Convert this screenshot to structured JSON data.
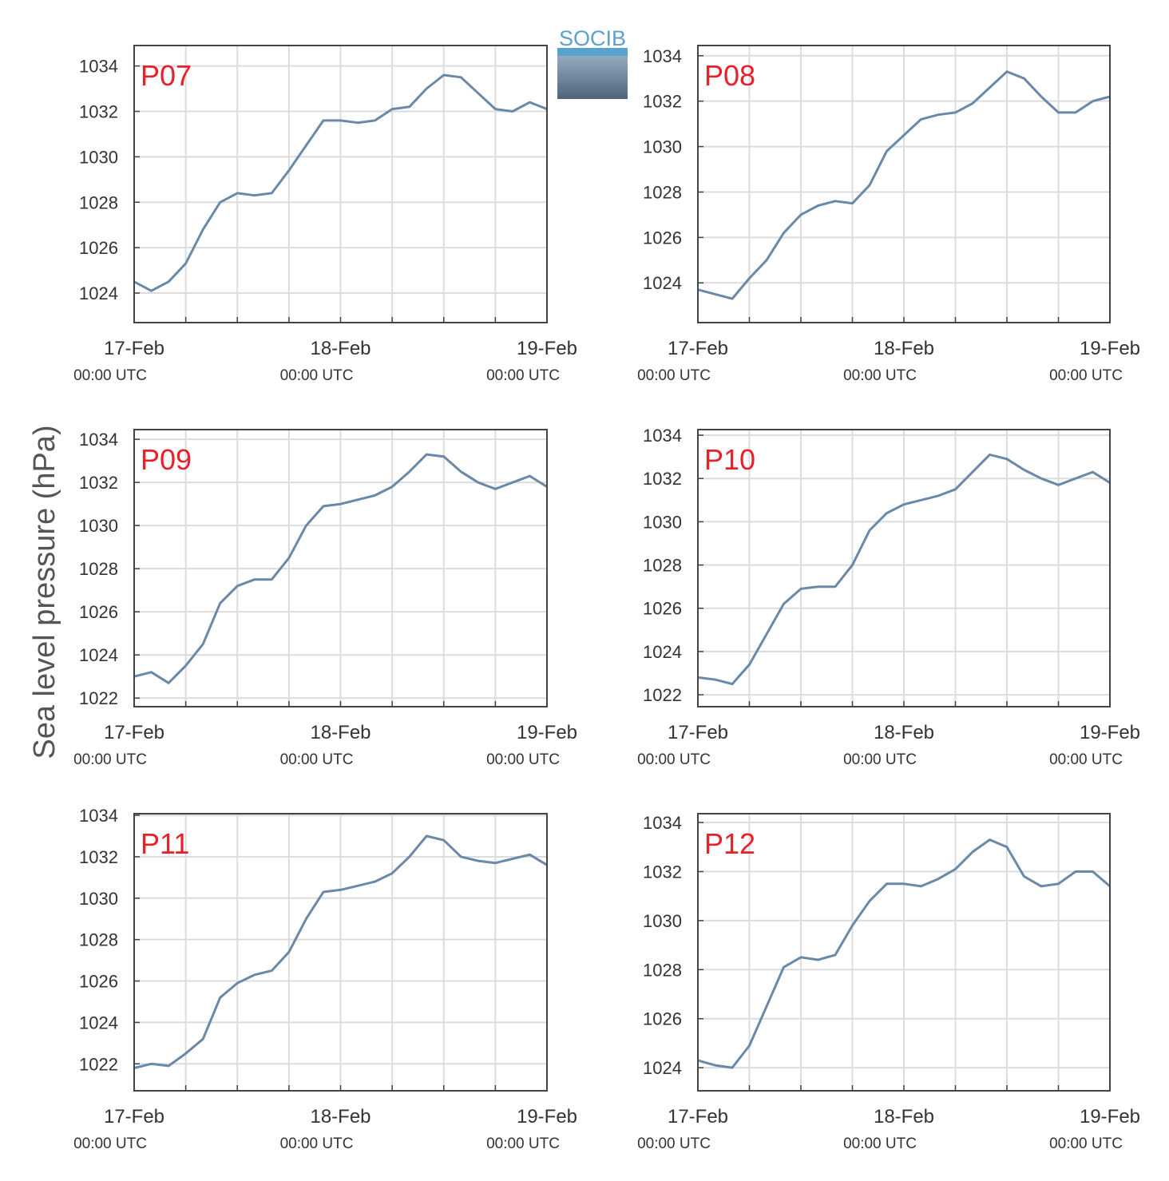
{
  "logo": "SOCIB",
  "chart_data": [
    {
      "type": "line",
      "title": "P07",
      "color": "#6a89a8",
      "grid": true,
      "x": [
        "17-Feb 00:00",
        "17-Feb 02:00",
        "17-Feb 04:00",
        "17-Feb 06:00",
        "17-Feb 08:00",
        "17-Feb 10:00",
        "17-Feb 12:00",
        "17-Feb 14:00",
        "17-Feb 16:00",
        "17-Feb 18:00",
        "17-Feb 20:00",
        "17-Feb 22:00",
        "18-Feb 00:00",
        "18-Feb 02:00",
        "18-Feb 04:00",
        "18-Feb 06:00",
        "18-Feb 08:00",
        "18-Feb 10:00",
        "18-Feb 12:00",
        "18-Feb 14:00",
        "18-Feb 16:00",
        "18-Feb 18:00",
        "18-Feb 20:00",
        "18-Feb 22:00",
        "19-Feb 00:00"
      ],
      "values": [
        1024.5,
        1024.1,
        1024.5,
        1025.3,
        1026.8,
        1028.0,
        1028.4,
        1028.3,
        1028.4,
        1029.4,
        1030.5,
        1031.6,
        1031.6,
        1031.5,
        1031.6,
        1032.1,
        1032.2,
        1033.0,
        1033.6,
        1033.5,
        1032.8,
        1032.1,
        1032.0,
        1032.4,
        1032.1
      ],
      "xlim": [
        "17-Feb 00:00",
        "19-Feb 00:00"
      ],
      "xticks": [
        {
          "value": "17-Feb 00:00",
          "label": "17-Feb",
          "sublabel": "00:00 UTC"
        },
        "17-Feb 06:00",
        "17-Feb 12:00",
        "17-Feb 18:00",
        {
          "value": "18-Feb 00:00",
          "label": "18-Feb",
          "sublabel": "00:00 UTC"
        },
        "18-Feb 06:00",
        "18-Feb 12:00",
        "18-Feb 18:00",
        {
          "value": "19-Feb 00:00",
          "label": "19-Feb",
          "sublabel": "00:00 UTC"
        }
      ],
      "ylim": [
        1022.7,
        1034.9
      ],
      "yticks": [
        1024,
        1026,
        1028,
        1030,
        1032,
        1034
      ]
    },
    {
      "type": "line",
      "title": "P08",
      "color": "#6a89a8",
      "grid": true,
      "x": [
        "17-Feb 00:00",
        "17-Feb 02:00",
        "17-Feb 04:00",
        "17-Feb 06:00",
        "17-Feb 08:00",
        "17-Feb 10:00",
        "17-Feb 12:00",
        "17-Feb 14:00",
        "17-Feb 16:00",
        "17-Feb 18:00",
        "17-Feb 20:00",
        "17-Feb 22:00",
        "18-Feb 00:00",
        "18-Feb 02:00",
        "18-Feb 04:00",
        "18-Feb 06:00",
        "18-Feb 08:00",
        "18-Feb 10:00",
        "18-Feb 12:00",
        "18-Feb 14:00",
        "18-Feb 16:00",
        "18-Feb 18:00",
        "18-Feb 20:00",
        "18-Feb 22:00",
        "19-Feb 00:00"
      ],
      "values": [
        1023.7,
        1023.5,
        1023.3,
        1024.2,
        1025.0,
        1026.2,
        1027.0,
        1027.4,
        1027.6,
        1027.5,
        1028.3,
        1029.8,
        1030.5,
        1031.2,
        1031.4,
        1031.5,
        1031.9,
        1032.6,
        1033.3,
        1033.0,
        1032.2,
        1031.5,
        1031.5,
        1032.0,
        1032.2
      ],
      "xlim": [
        "17-Feb 00:00",
        "19-Feb 00:00"
      ],
      "xticks": [
        {
          "value": "17-Feb 00:00",
          "label": "17-Feb",
          "sublabel": "00:00 UTC"
        },
        "17-Feb 06:00",
        "17-Feb 12:00",
        "17-Feb 18:00",
        {
          "value": "18-Feb 00:00",
          "label": "18-Feb",
          "sublabel": "00:00 UTC"
        },
        "18-Feb 06:00",
        "18-Feb 12:00",
        "18-Feb 18:00",
        {
          "value": "19-Feb 00:00",
          "label": "19-Feb",
          "sublabel": "00:00 UTC"
        }
      ],
      "ylim": [
        1022.25,
        1034.45
      ],
      "yticks": [
        1024,
        1026,
        1028,
        1030,
        1032,
        1034
      ]
    },
    {
      "type": "line",
      "title": "P09",
      "color": "#6a89a8",
      "grid": true,
      "ylabel": "Sea level pressure (hPa)",
      "x": [
        "17-Feb 00:00",
        "17-Feb 02:00",
        "17-Feb 04:00",
        "17-Feb 06:00",
        "17-Feb 08:00",
        "17-Feb 10:00",
        "17-Feb 12:00",
        "17-Feb 14:00",
        "17-Feb 16:00",
        "17-Feb 18:00",
        "17-Feb 20:00",
        "17-Feb 22:00",
        "18-Feb 00:00",
        "18-Feb 02:00",
        "18-Feb 04:00",
        "18-Feb 06:00",
        "18-Feb 08:00",
        "18-Feb 10:00",
        "18-Feb 12:00",
        "18-Feb 14:00",
        "18-Feb 16:00",
        "18-Feb 18:00",
        "18-Feb 20:00",
        "18-Feb 22:00",
        "19-Feb 00:00"
      ],
      "values": [
        1023.0,
        1023.2,
        1022.7,
        1023.5,
        1024.5,
        1026.4,
        1027.2,
        1027.5,
        1027.5,
        1028.5,
        1030.0,
        1030.9,
        1031.0,
        1031.2,
        1031.4,
        1031.8,
        1032.5,
        1033.3,
        1033.2,
        1032.5,
        1032.0,
        1031.7,
        1032.0,
        1032.3,
        1031.8
      ],
      "xlim": [
        "17-Feb 00:00",
        "19-Feb 00:00"
      ],
      "xticks": [
        {
          "value": "17-Feb 00:00",
          "label": "17-Feb",
          "sublabel": "00:00 UTC"
        },
        "17-Feb 06:00",
        "17-Feb 12:00",
        "17-Feb 18:00",
        {
          "value": "18-Feb 00:00",
          "label": "18-Feb",
          "sublabel": "00:00 UTC"
        },
        "18-Feb 06:00",
        "18-Feb 12:00",
        "18-Feb 18:00",
        {
          "value": "19-Feb 00:00",
          "label": "19-Feb",
          "sublabel": "00:00 UTC"
        }
      ],
      "ylim": [
        1021.6,
        1034.45
      ],
      "yticks": [
        1022,
        1024,
        1026,
        1028,
        1030,
        1032,
        1034
      ]
    },
    {
      "type": "line",
      "title": "P10",
      "color": "#6a89a8",
      "grid": true,
      "x": [
        "17-Feb 00:00",
        "17-Feb 02:00",
        "17-Feb 04:00",
        "17-Feb 06:00",
        "17-Feb 08:00",
        "17-Feb 10:00",
        "17-Feb 12:00",
        "17-Feb 14:00",
        "17-Feb 16:00",
        "17-Feb 18:00",
        "17-Feb 20:00",
        "17-Feb 22:00",
        "18-Feb 00:00",
        "18-Feb 02:00",
        "18-Feb 04:00",
        "18-Feb 06:00",
        "18-Feb 08:00",
        "18-Feb 10:00",
        "18-Feb 12:00",
        "18-Feb 14:00",
        "18-Feb 16:00",
        "18-Feb 18:00",
        "18-Feb 20:00",
        "18-Feb 22:00",
        "19-Feb 00:00"
      ],
      "values": [
        1022.8,
        1022.7,
        1022.5,
        1023.4,
        1024.8,
        1026.2,
        1026.9,
        1027.0,
        1027.0,
        1028.0,
        1029.6,
        1030.4,
        1030.8,
        1031.0,
        1031.2,
        1031.5,
        1032.3,
        1033.1,
        1032.9,
        1032.4,
        1032.0,
        1031.7,
        1032.0,
        1032.3,
        1031.8
      ],
      "xlim": [
        "17-Feb 00:00",
        "19-Feb 00:00"
      ],
      "xticks": [
        {
          "value": "17-Feb 00:00",
          "label": "17-Feb",
          "sublabel": "00:00 UTC"
        },
        "17-Feb 06:00",
        "17-Feb 12:00",
        "17-Feb 18:00",
        {
          "value": "18-Feb 00:00",
          "label": "18-Feb",
          "sublabel": "00:00 UTC"
        },
        "18-Feb 06:00",
        "18-Feb 12:00",
        "18-Feb 18:00",
        {
          "value": "19-Feb 00:00",
          "label": "19-Feb",
          "sublabel": "00:00 UTC"
        }
      ],
      "ylim": [
        1021.45,
        1034.26
      ],
      "yticks": [
        1022,
        1024,
        1026,
        1028,
        1030,
        1032,
        1034
      ]
    },
    {
      "type": "line",
      "title": "P11",
      "color": "#6a89a8",
      "grid": true,
      "x": [
        "17-Feb 00:00",
        "17-Feb 02:00",
        "17-Feb 04:00",
        "17-Feb 06:00",
        "17-Feb 08:00",
        "17-Feb 10:00",
        "17-Feb 12:00",
        "17-Feb 14:00",
        "17-Feb 16:00",
        "17-Feb 18:00",
        "17-Feb 20:00",
        "17-Feb 22:00",
        "18-Feb 00:00",
        "18-Feb 02:00",
        "18-Feb 04:00",
        "18-Feb 06:00",
        "18-Feb 08:00",
        "18-Feb 10:00",
        "18-Feb 12:00",
        "18-Feb 14:00",
        "18-Feb 16:00",
        "18-Feb 18:00",
        "18-Feb 20:00",
        "18-Feb 22:00",
        "19-Feb 00:00"
      ],
      "values": [
        1021.8,
        1022.0,
        1021.9,
        1022.5,
        1023.2,
        1025.2,
        1025.9,
        1026.3,
        1026.5,
        1027.4,
        1029.0,
        1030.3,
        1030.4,
        1030.6,
        1030.8,
        1031.2,
        1032.0,
        1033.0,
        1032.8,
        1032.0,
        1031.8,
        1031.7,
        1031.9,
        1032.1,
        1031.6
      ],
      "xlim": [
        "17-Feb 00:00",
        "19-Feb 00:00"
      ],
      "xticks": [
        {
          "value": "17-Feb 00:00",
          "label": "17-Feb",
          "sublabel": "00:00 UTC"
        },
        "17-Feb 06:00",
        "17-Feb 12:00",
        "17-Feb 18:00",
        {
          "value": "18-Feb 00:00",
          "label": "18-Feb",
          "sublabel": "00:00 UTC"
        },
        "18-Feb 06:00",
        "18-Feb 12:00",
        "18-Feb 18:00",
        {
          "value": "19-Feb 00:00",
          "label": "19-Feb",
          "sublabel": "00:00 UTC"
        }
      ],
      "ylim": [
        1020.7,
        1034.08
      ],
      "yticks": [
        1022,
        1024,
        1026,
        1028,
        1030,
        1032,
        1034
      ]
    },
    {
      "type": "line",
      "title": "P12",
      "color": "#6a89a8",
      "grid": true,
      "x": [
        "17-Feb 00:00",
        "17-Feb 02:00",
        "17-Feb 04:00",
        "17-Feb 06:00",
        "17-Feb 08:00",
        "17-Feb 10:00",
        "17-Feb 12:00",
        "17-Feb 14:00",
        "17-Feb 16:00",
        "17-Feb 18:00",
        "17-Feb 20:00",
        "17-Feb 22:00",
        "18-Feb 00:00",
        "18-Feb 02:00",
        "18-Feb 04:00",
        "18-Feb 06:00",
        "18-Feb 08:00",
        "18-Feb 10:00",
        "18-Feb 12:00",
        "18-Feb 14:00",
        "18-Feb 16:00",
        "18-Feb 18:00",
        "18-Feb 20:00",
        "18-Feb 22:00",
        "19-Feb 00:00"
      ],
      "values": [
        1024.3,
        1024.1,
        1024.0,
        1024.9,
        1026.5,
        1028.1,
        1028.5,
        1028.4,
        1028.6,
        1029.8,
        1030.8,
        1031.5,
        1031.5,
        1031.4,
        1031.7,
        1032.1,
        1032.8,
        1033.3,
        1033.0,
        1031.8,
        1031.4,
        1031.5,
        1032.0,
        1032.0,
        1031.4
      ],
      "xlim": [
        "17-Feb 00:00",
        "19-Feb 00:00"
      ],
      "xticks": [
        {
          "value": "17-Feb 00:00",
          "label": "17-Feb",
          "sublabel": "00:00 UTC"
        },
        "17-Feb 06:00",
        "17-Feb 12:00",
        "17-Feb 18:00",
        {
          "value": "18-Feb 00:00",
          "label": "18-Feb",
          "sublabel": "00:00 UTC"
        },
        "18-Feb 06:00",
        "18-Feb 12:00",
        "18-Feb 18:00",
        {
          "value": "19-Feb 00:00",
          "label": "19-Feb",
          "sublabel": "00:00 UTC"
        }
      ],
      "ylim": [
        1023.06,
        1034.36
      ],
      "yticks": [
        1024,
        1026,
        1028,
        1030,
        1032,
        1034
      ]
    }
  ]
}
